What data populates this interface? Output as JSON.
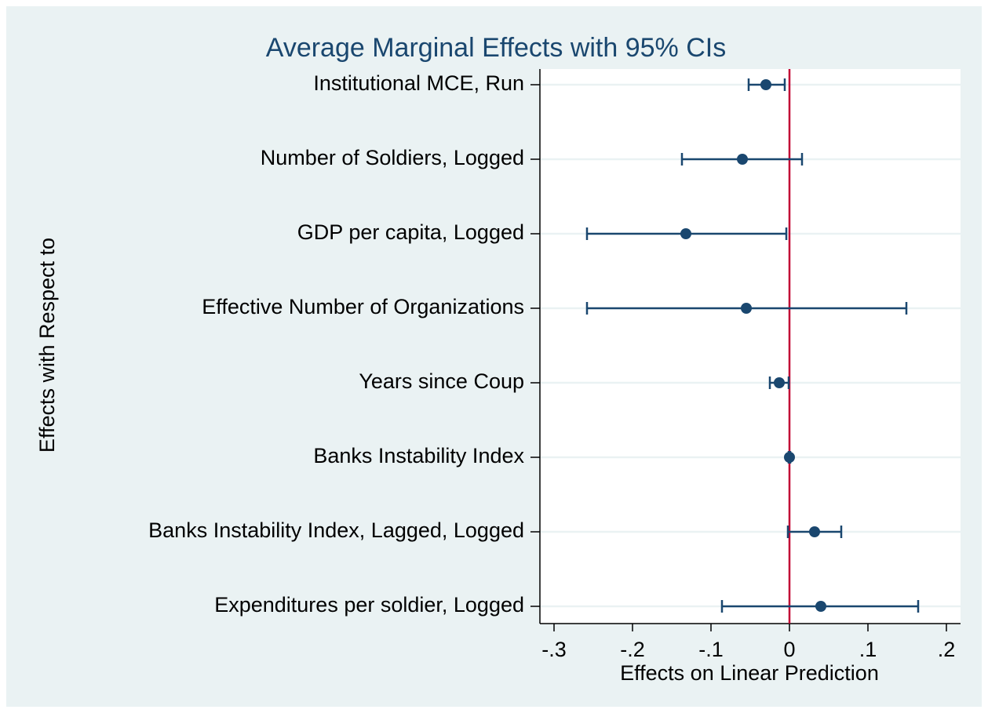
{
  "chart_data": {
    "type": "coefplot",
    "title": "Average Marginal Effects with 95% CIs",
    "x_label": "Effects on Linear Prediction",
    "y_label": "Effects with Respect to",
    "categories": [
      "Institutional MCE, Run",
      "Number of Soldiers, Logged",
      "GDP per capita, Logged",
      "Effective Number of Organizations",
      "Years since Coup",
      "Banks Instability Index",
      "Banks Instability Index, Lagged, Logged",
      "Expenditures per soldier, Logged"
    ],
    "values": [
      -0.03,
      -0.06,
      -0.132,
      -0.055,
      -0.013,
      0.0,
      0.032,
      0.04
    ],
    "ci_lower": [
      -0.052,
      -0.137,
      -0.258,
      -0.258,
      -0.025,
      -0.001,
      -0.002,
      -0.086
    ],
    "ci_upper": [
      -0.006,
      0.016,
      -0.004,
      0.149,
      -0.001,
      0.001,
      0.066,
      0.164
    ],
    "color": "#1a476f",
    "xlim": [
      -0.318,
      0.218
    ],
    "xticks": [
      {
        "value": -0.3,
        "label": "-.3"
      },
      {
        "value": -0.2,
        "label": "-.2"
      },
      {
        "value": -0.1,
        "label": "-.1"
      },
      0,
      {
        "value": 0.1,
        "label": ".1"
      },
      {
        "value": 0.2,
        "label": ".2"
      }
    ],
    "reference_line": {
      "x": 0,
      "color": "#c10534"
    },
    "grid": true
  }
}
